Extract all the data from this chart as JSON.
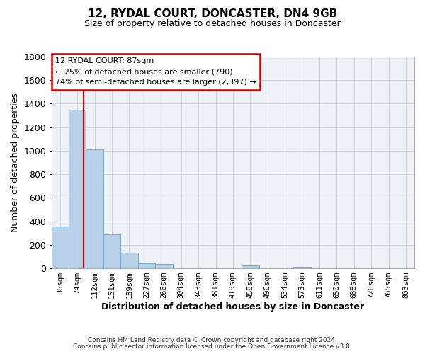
{
  "title": "12, RYDAL COURT, DONCASTER, DN4 9GB",
  "subtitle": "Size of property relative to detached houses in Doncaster",
  "xlabel": "Distribution of detached houses by size in Doncaster",
  "ylabel": "Number of detached properties",
  "bar_labels": [
    "36sqm",
    "74sqm",
    "112sqm",
    "151sqm",
    "189sqm",
    "227sqm",
    "266sqm",
    "304sqm",
    "343sqm",
    "381sqm",
    "419sqm",
    "458sqm",
    "496sqm",
    "534sqm",
    "573sqm",
    "611sqm",
    "650sqm",
    "688sqm",
    "726sqm",
    "765sqm",
    "803sqm"
  ],
  "bar_values": [
    355,
    1350,
    1010,
    290,
    130,
    40,
    35,
    0,
    0,
    0,
    0,
    25,
    0,
    0,
    15,
    0,
    0,
    0,
    0,
    0,
    0
  ],
  "bar_color": "#b8d0e8",
  "bar_edge_color": "#6baed6",
  "vline_x": 87,
  "vline_color": "#cc0000",
  "ylim": [
    0,
    1800
  ],
  "yticks": [
    0,
    200,
    400,
    600,
    800,
    1000,
    1200,
    1400,
    1600,
    1800
  ],
  "annotation_title": "12 RYDAL COURT: 87sqm",
  "annotation_line1": "← 25% of detached houses are smaller (790)",
  "annotation_line2": "74% of semi-detached houses are larger (2,397) →",
  "annotation_box_color": "#ffffff",
  "annotation_box_edge": "#cc0000",
  "footer1": "Contains HM Land Registry data © Crown copyright and database right 2024.",
  "footer2": "Contains public sector information licensed under the Open Government Licence v3.0.",
  "background_color": "#ffffff",
  "grid_color": "#cccccc",
  "label_vals": [
    36,
    74,
    112,
    151,
    189,
    227,
    266,
    304,
    343,
    381,
    419,
    458,
    496,
    534,
    573,
    611,
    650,
    688,
    726,
    765,
    803
  ]
}
